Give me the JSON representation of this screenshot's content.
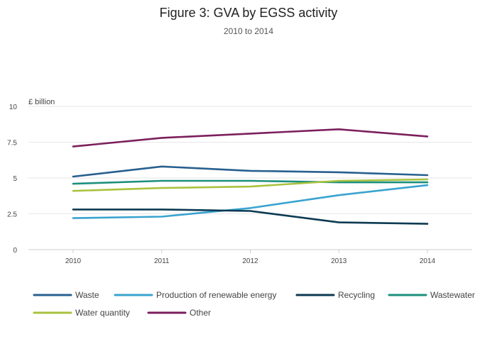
{
  "chart_data": {
    "type": "line",
    "title": "Figure 3: GVA by EGSS activity",
    "subtitle": "2010 to 2014",
    "ylabel": "£ billion",
    "xlabel": "",
    "x": [
      "2010",
      "2011",
      "2012",
      "2013",
      "2014"
    ],
    "ylim": [
      0,
      10
    ],
    "yticks": [
      0,
      2.5,
      5,
      7.5,
      10
    ],
    "ytick_labels": [
      "0",
      "2.5",
      "5",
      "7.5",
      "10"
    ],
    "grid": true,
    "legend_position": "bottom",
    "series": [
      {
        "name": "Waste",
        "color": "#27608f",
        "values": [
          5.1,
          5.8,
          5.5,
          5.4,
          5.2
        ]
      },
      {
        "name": "Production of renewable energy",
        "color": "#3aa3cf",
        "values": [
          2.2,
          2.3,
          2.9,
          3.8,
          4.5
        ]
      },
      {
        "name": "Recycling",
        "color": "#0b3a52",
        "values": [
          2.8,
          2.8,
          2.7,
          1.9,
          1.8
        ]
      },
      {
        "name": "Wastewater",
        "color": "#1d8f7e",
        "values": [
          4.6,
          4.8,
          4.8,
          4.7,
          4.7
        ]
      },
      {
        "name": "Water quantity",
        "color": "#a9c23f",
        "values": [
          4.1,
          4.3,
          4.4,
          4.8,
          4.9
        ]
      },
      {
        "name": "Other",
        "color": "#7c1f5c",
        "values": [
          7.2,
          7.8,
          8.1,
          8.4,
          7.9
        ]
      }
    ]
  }
}
